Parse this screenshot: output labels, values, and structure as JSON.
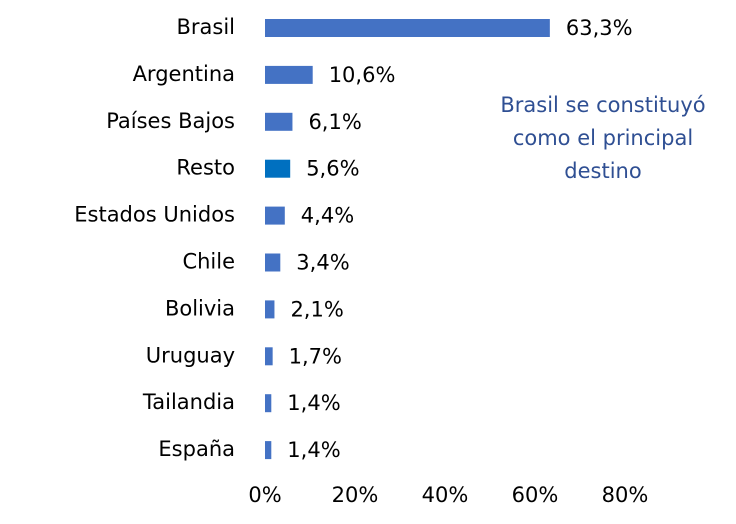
{
  "chart_data": {
    "type": "barh",
    "categories": [
      "Brasil",
      "Argentina",
      "Países Bajos",
      "Resto",
      "Estados Unidos",
      "Chile",
      "Bolivia",
      "Uruguay",
      "Tailandia",
      "España"
    ],
    "values": [
      63.3,
      10.6,
      6.1,
      5.6,
      4.4,
      3.4,
      2.1,
      1.7,
      1.4,
      1.4
    ],
    "value_labels": [
      "63,3%",
      "10,6%",
      "6,1%",
      "5,6%",
      "4,4%",
      "3,4%",
      "2,1%",
      "1,7%",
      "1,4%",
      "1,4%"
    ],
    "colors": [
      "#4472c4",
      "#4472c4",
      "#4472c4",
      "#0070c0",
      "#4472c4",
      "#4472c4",
      "#4472c4",
      "#4472c4",
      "#4472c4",
      "#4472c4"
    ],
    "xlim": [
      0,
      80
    ],
    "xticks": [
      {
        "value": 0,
        "label": "0%"
      },
      {
        "value": 20,
        "label": "20%"
      },
      {
        "value": 40,
        "label": "40%"
      },
      {
        "value": 60,
        "label": "60%"
      },
      {
        "value": 80,
        "label": "80%"
      }
    ],
    "annotation": [
      "Brasil se constituyó",
      "como el principal",
      "destino"
    ]
  }
}
